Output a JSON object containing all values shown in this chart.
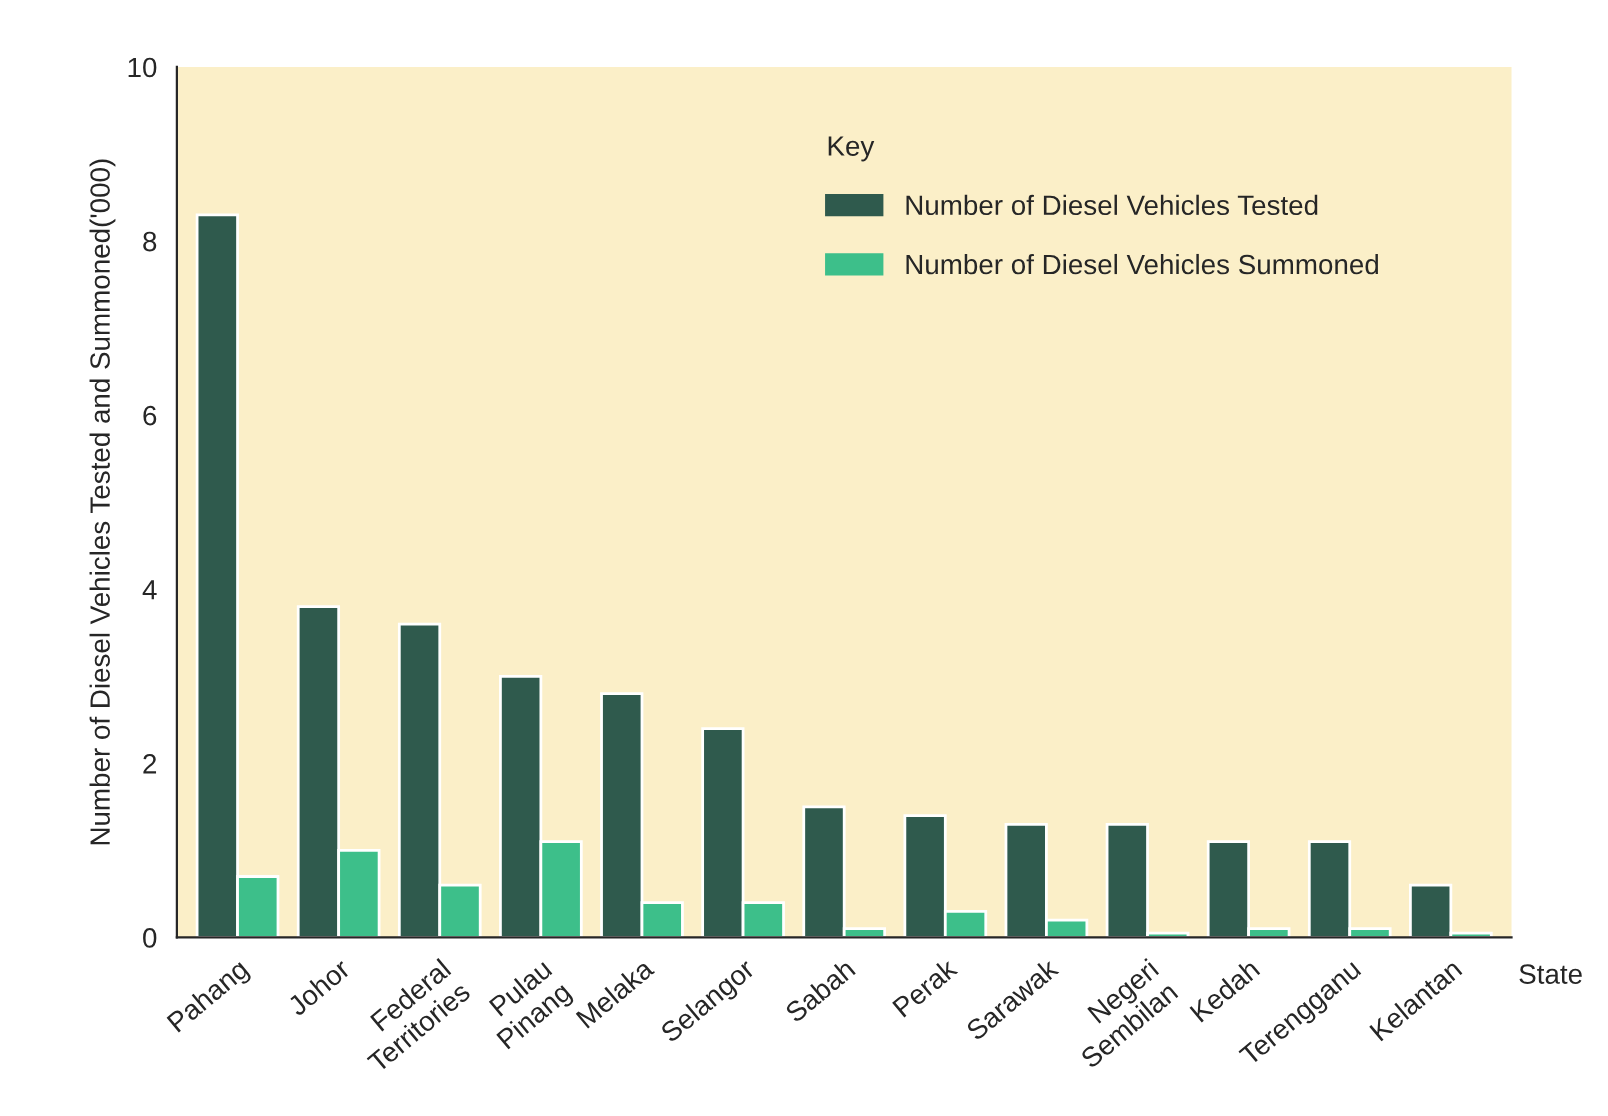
{
  "chart_data": {
    "type": "bar",
    "xlabel": "State",
    "ylabel": "Number of Diesel Vehicles Tested and Summoned('000)",
    "legend_title": "Key",
    "categories": [
      "Pahang",
      "Johor",
      "Federal\nTerritories",
      "Pulau\nPinang",
      "Melaka",
      "Selangor",
      "Sabah",
      "Perak",
      "Sarawak",
      "Negeri\nSembilan",
      "Kedah",
      "Terengganu",
      "Kelantan"
    ],
    "series": [
      {
        "name": "Number of Diesel Vehicles Tested",
        "color": "#2f5a4d",
        "values": [
          8.3,
          3.8,
          3.6,
          3.0,
          2.8,
          2.4,
          1.5,
          1.4,
          1.3,
          1.3,
          1.1,
          1.1,
          0.6
        ]
      },
      {
        "name": "Number of Diesel Vehicles Summoned",
        "color": "#3dbf8a",
        "values": [
          0.7,
          1.0,
          0.6,
          1.1,
          0.4,
          0.4,
          0.1,
          0.3,
          0.2,
          0.05,
          0.1,
          0.1,
          0.05
        ]
      }
    ],
    "ylim": [
      0,
      10
    ],
    "yticks": [
      0,
      2,
      4,
      6,
      8,
      10
    ],
    "grid": false,
    "legend": "top right"
  }
}
